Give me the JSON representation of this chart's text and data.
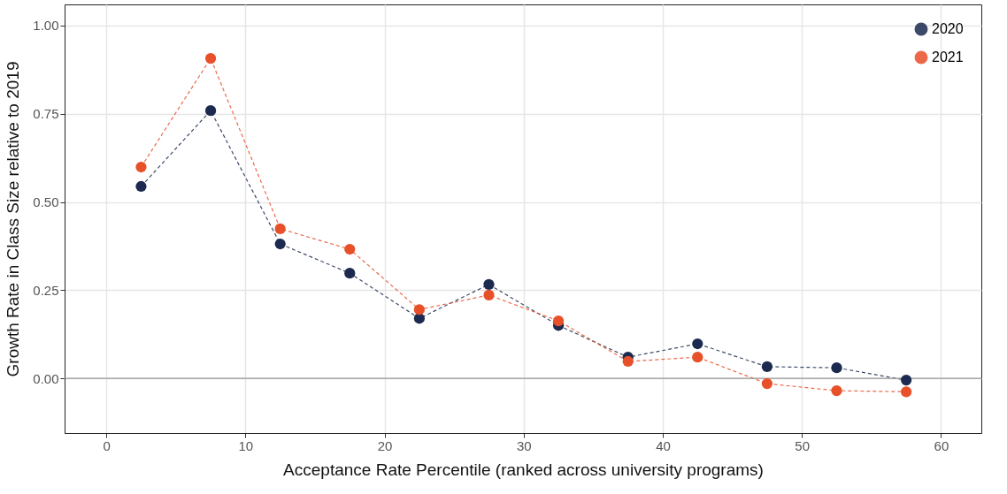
{
  "chart_data": {
    "type": "line",
    "xlabel": "Acceptance Rate Percentile (ranked across university programs)",
    "ylabel": "Growth Rate in Class Size relative to 2019",
    "x": [
      2.5,
      7.5,
      12.5,
      17.5,
      22.5,
      27.5,
      32.5,
      37.5,
      42.5,
      47.5,
      52.5,
      57.5
    ],
    "series": [
      {
        "name": "2020",
        "color": "#1b2a4e",
        "values": [
          0.544,
          0.759,
          0.381,
          0.298,
          0.17,
          0.266,
          0.15,
          0.06,
          0.098,
          0.033,
          0.03,
          -0.005
        ]
      },
      {
        "name": "2021",
        "color": "#e8502a",
        "values": [
          0.599,
          0.907,
          0.424,
          0.366,
          0.195,
          0.236,
          0.163,
          0.048,
          0.06,
          -0.015,
          -0.035,
          -0.038
        ]
      }
    ],
    "xlim": [
      -3,
      62.9
    ],
    "xticks": [
      0,
      10,
      20,
      30,
      40,
      50,
      60
    ],
    "ylim": [
      -0.155,
      1.06
    ],
    "yticks": [
      {
        "value": 0,
        "label": "0.00"
      },
      {
        "value": 0.25,
        "label": "0.25"
      },
      {
        "value": 0.5,
        "label": "0.50"
      },
      {
        "value": 0.75,
        "label": "0.75"
      },
      {
        "value": 1,
        "label": "1.00"
      }
    ],
    "ref_lines": [
      {
        "axis": "y",
        "value": 0,
        "color": "#999999"
      }
    ],
    "grid": true,
    "legend": "top right",
    "marker": "circle",
    "line_style": "dashed"
  }
}
